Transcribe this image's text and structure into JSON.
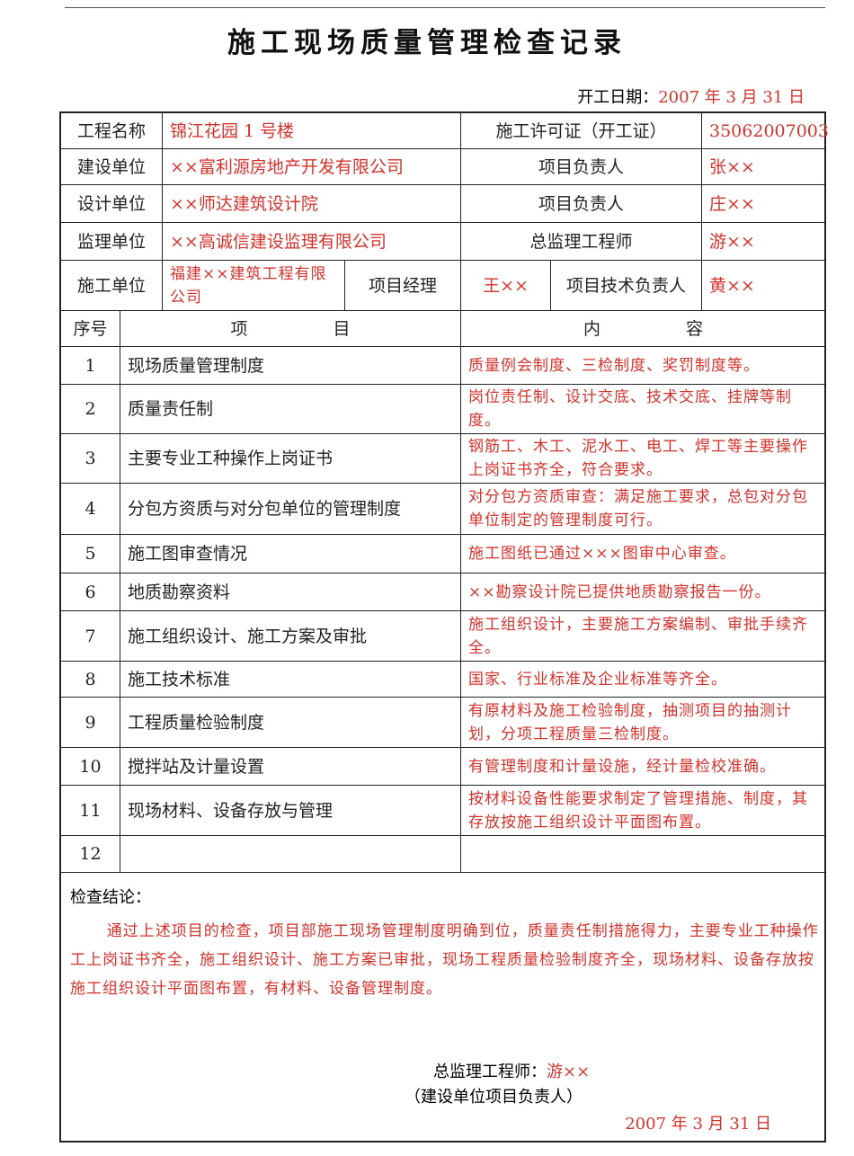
{
  "header": {
    "title": "施工现场质量管理检查记录",
    "start_date_label": "开工日期：",
    "start_date": "2007 年 3 月 31 日"
  },
  "info": {
    "rows": [
      [
        "工程名称",
        "锦江花园 1 号楼",
        "施工许可证（开工证）",
        "35062007003"
      ],
      [
        "建设单位",
        "××富利源房地产开发有限公司",
        "项目负责人",
        "张××"
      ],
      [
        "设计单位",
        "××师达建筑设计院",
        "项目负责人",
        "庄××"
      ],
      [
        "监理单位",
        "××高诚信建设监理有限公司",
        "总监理工程师",
        "游××"
      ]
    ],
    "construction_row": [
      "施工单位",
      "福建××建筑工程有限公司",
      "项目经理",
      "王××",
      "项目技术负责人",
      "黄××"
    ]
  },
  "table": {
    "columns": [
      "序号",
      "项　　　　　目",
      "内　　　　　容"
    ],
    "rows": [
      [
        "1",
        "现场质量管理制度",
        "质量例会制度、三检制度、奖罚制度等。"
      ],
      [
        "2",
        "质量责任制",
        "岗位责任制、设计交底、技术交底、挂牌等制度。"
      ],
      [
        "3",
        "主要专业工种操作上岗证书",
        "钢筋工、木工、泥水工、电工、焊工等主要操作上岗证书齐全，符合要求。"
      ],
      [
        "4",
        "分包方资质与对分包单位的管理制度",
        "对分包方资质审查：满足施工要求，总包对分包单位制定的管理制度可行。"
      ],
      [
        "5",
        "施工图审查情况",
        "施工图纸已通过×××图审中心审查。"
      ],
      [
        "6",
        "地质勘察资料",
        "××勘察设计院已提供地质勘察报告一份。"
      ],
      [
        "7",
        "施工组织设计、施工方案及审批",
        "施工组织设计，主要施工方案编制、审批手续齐全。"
      ],
      [
        "8",
        "施工技术标准",
        "国家、行业标准及企业标准等齐全。"
      ],
      [
        "9",
        "工程质量检验制度",
        "有原材料及施工检验制度，抽测项目的抽测计划，分项工程质量三检制度。"
      ],
      [
        "10",
        "搅拌站及计量设置",
        "有管理制度和计量设施，经计量检校准确。"
      ],
      [
        "11",
        "现场材料、设备存放与管理",
        "按材料设备性能要求制定了管理措施、制度，其存放按施工组织设计平面图布置。"
      ],
      [
        "12"
      ]
    ]
  },
  "conclusion": {
    "label": "检查结论：",
    "text": "通过上述项目的检查，项目部施工现场管理制度明确到位，质量责任制措施得力，主要专业工种操作工上岗证书齐全，施工组织设计、施工方案已审批，现场工程质量检验制度齐全，现场材料、设备存放按施工组织设计平面图布置，有材料、设备管理制度。",
    "signer_label": "总监理工程师：",
    "signer": "游××",
    "signer_note": "（建设单位项目负责人）",
    "date": "2007 年 3 月 31 日"
  }
}
